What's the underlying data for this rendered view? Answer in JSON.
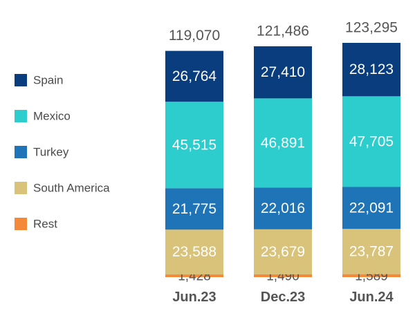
{
  "chart_data": {
    "type": "bar",
    "stacked": true,
    "title": "",
    "xlabel": "",
    "ylabel": "",
    "categories": [
      "Jun.23",
      "Dec.23",
      "Jun.24"
    ],
    "totals": [
      "119,070",
      "121,486",
      "123,295"
    ],
    "legend_position": "left",
    "series": [
      {
        "name": "Rest",
        "color": "#f5893a",
        "values": [
          1428,
          1490,
          1589
        ],
        "labels": [
          "1,428",
          "1,490",
          "1,589"
        ]
      },
      {
        "name": "South America",
        "color": "#d9c27a",
        "values": [
          23588,
          23679,
          23787
        ],
        "labels": [
          "23,588",
          "23,679",
          "23,787"
        ]
      },
      {
        "name": "Turkey",
        "color": "#1f73b7",
        "values": [
          21775,
          22016,
          22091
        ],
        "labels": [
          "21,775",
          "22,016",
          "22,091"
        ]
      },
      {
        "name": "Mexico",
        "color": "#2dcccd",
        "values": [
          45515,
          46891,
          47705
        ],
        "labels": [
          "45,515",
          "46,891",
          "47,705"
        ]
      },
      {
        "name": "Spain",
        "color": "#0a3d7e",
        "values": [
          26764,
          27410,
          28123
        ],
        "labels": [
          "26,764",
          "27,410",
          "28,123"
        ]
      }
    ],
    "legend_order": [
      "Spain",
      "Mexico",
      "Turkey",
      "South America",
      "Rest"
    ]
  }
}
